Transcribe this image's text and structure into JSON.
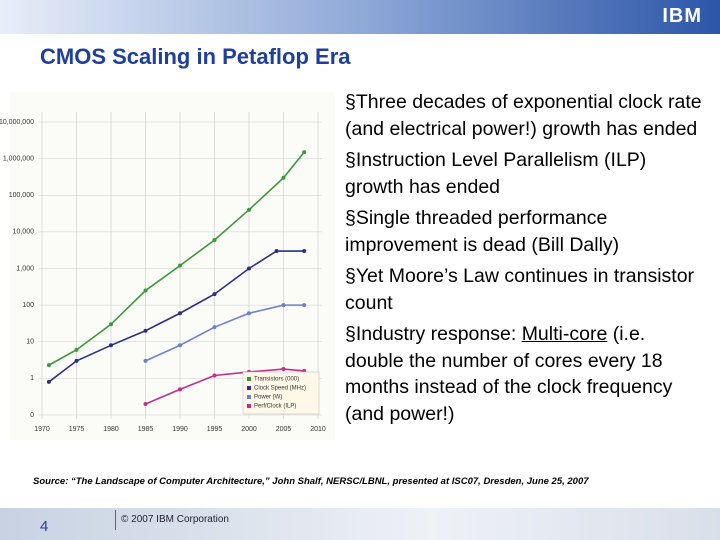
{
  "header": {
    "logo": "IBM",
    "title": "CMOS Scaling in Petaflop Era"
  },
  "chart_data": {
    "type": "scatter",
    "log_y": true,
    "grid": true,
    "legend": "lower right",
    "xlim": [
      1970,
      2010
    ],
    "xticks": [
      1970,
      1975,
      1980,
      1985,
      1990,
      1995,
      2000,
      2005,
      2010
    ],
    "ylim": [
      0.1,
      10000000
    ],
    "yticks": [
      {
        "value": 0.1,
        "label": "0"
      },
      1,
      10,
      100,
      {
        "value": 1000,
        "label": "1,000"
      },
      {
        "value": 10000,
        "label": "10,000"
      },
      {
        "value": 100000,
        "label": "100,000"
      },
      {
        "value": 1000000,
        "label": "1,000,000"
      },
      {
        "value": 10000000,
        "label": "10,000,000"
      }
    ],
    "series": [
      {
        "name": "Transistors (000)",
        "color": "#3a9a3a",
        "x": [
          1971,
          1975,
          1980,
          1985,
          1990,
          1995,
          2000,
          2005,
          2008
        ],
        "values": [
          2.3,
          6,
          30,
          250,
          1200,
          6000,
          40000,
          300000,
          1500000
        ]
      },
      {
        "name": "Clock Speed (MHz)",
        "color": "#2b2f8a",
        "x": [
          1971,
          1975,
          1980,
          1985,
          1990,
          1995,
          2000,
          2004,
          2008
        ],
        "values": [
          0.8,
          3,
          8,
          20,
          60,
          200,
          1000,
          3000,
          3000
        ]
      },
      {
        "name": "Power (W)",
        "color": "#6a7fd0",
        "x": [
          1985,
          1990,
          1995,
          2000,
          2005,
          2008
        ],
        "values": [
          3,
          8,
          25,
          60,
          100,
          100
        ]
      },
      {
        "name": "Perf/Clock (ILP)",
        "color": "#c0308a",
        "x": [
          1985,
          1990,
          1995,
          2000,
          2005,
          2008
        ],
        "values": [
          0.2,
          0.5,
          1.2,
          1.5,
          1.8,
          1.6
        ]
      }
    ]
  },
  "bullets": [
    {
      "text": "§Three decades of exponential clock rate (and electrical power!) growth has ended"
    },
    {
      "text": "§Instruction Level Parallelism (ILP) growth has ended"
    },
    {
      "text": "§Single threaded performance improvement is dead (Bill Dally)"
    },
    {
      "text": "§Yet Moore’s Law continues in transistor count"
    },
    {
      "text": "§Industry response: ",
      "underlined": "Multi-core",
      "rest": " (i.e. double the number of cores every 18 months instead of the clock frequency (and power!)"
    }
  ],
  "source": "Source: “The Landscape of Computer Architecture,” John Shalf, NERSC/LBNL, presented at ISC07, Dresden, June 25, 2007",
  "footer": {
    "page": "4",
    "copyright": "© 2007 IBM Corporation"
  }
}
